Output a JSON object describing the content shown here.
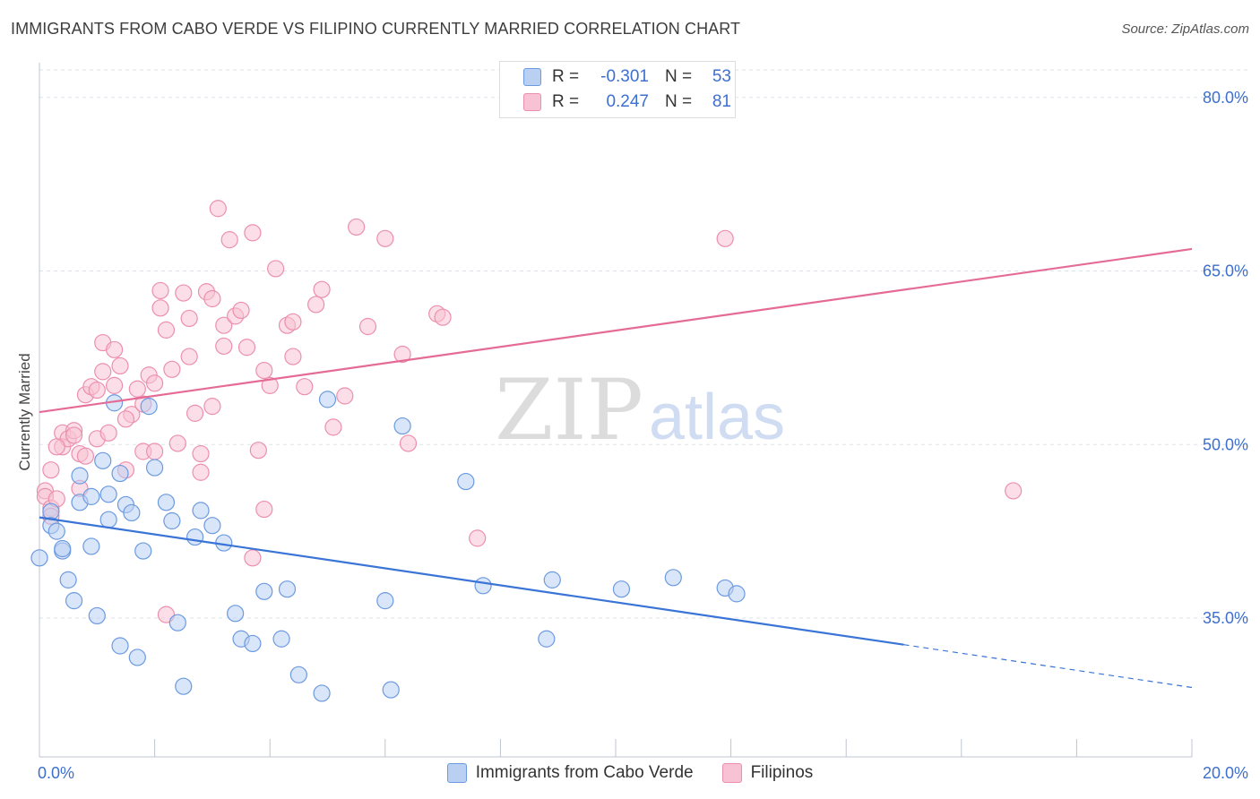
{
  "title": "IMMIGRANTS FROM CABO VERDE VS FILIPINO CURRENTLY MARRIED CORRELATION CHART",
  "source": "Source: ZipAtlas.com",
  "watermark": {
    "zip": "ZIP",
    "atlas": "atlas"
  },
  "legend_top": [
    {
      "r_label": "R =",
      "r_value": "-0.301",
      "n_label": "N =",
      "n_value": "53"
    },
    {
      "r_label": "R =",
      "r_value": "0.247",
      "n_label": "N =",
      "n_value": "81"
    }
  ],
  "colors": {
    "blue_fill": "#b9d0f2",
    "blue_stroke": "#6b9ae0",
    "blue_line": "#3a74d6",
    "pink_fill": "#f7c3d4",
    "pink_stroke": "#ec8fae",
    "pink_line": "#e56b97",
    "tick_text": "#3d6fcf",
    "grid": "#dde2ea"
  },
  "chart_data": {
    "type": "scatter",
    "title": "IMMIGRANTS FROM CABO VERDE VS FILIPINO CURRENTLY MARRIED CORRELATION CHART",
    "xlabel": "",
    "ylabel": "Currently Married",
    "xlim": [
      0,
      20
    ],
    "ylim": [
      23,
      83
    ],
    "x_tick_labels": [
      "0.0%",
      "20.0%"
    ],
    "y_ticks": [
      35,
      50,
      65,
      80
    ],
    "y_tick_labels": [
      "35.0%",
      "50.0%",
      "65.0%",
      "80.0%"
    ],
    "grid": true,
    "legend_position": "top-center",
    "series": [
      {
        "name": "Immigrants from Cabo Verde",
        "color": "#6b9ae0",
        "trend": {
          "x0": 0,
          "y0": 43.7,
          "x1": 15,
          "y1": 32.7,
          "dash_x1": 20,
          "dash_y1": 29.0
        },
        "points": [
          [
            0.0,
            40.2
          ],
          [
            0.2,
            44.2
          ],
          [
            0.2,
            43.0
          ],
          [
            0.3,
            42.5
          ],
          [
            0.4,
            40.8
          ],
          [
            0.4,
            41.0
          ],
          [
            0.5,
            38.3
          ],
          [
            0.6,
            36.5
          ],
          [
            0.7,
            47.3
          ],
          [
            0.7,
            45.0
          ],
          [
            0.9,
            45.5
          ],
          [
            0.9,
            41.2
          ],
          [
            1.0,
            35.2
          ],
          [
            1.1,
            48.6
          ],
          [
            1.2,
            45.7
          ],
          [
            1.2,
            43.5
          ],
          [
            1.4,
            47.5
          ],
          [
            1.4,
            32.6
          ],
          [
            1.5,
            44.8
          ],
          [
            1.6,
            44.1
          ],
          [
            1.7,
            31.6
          ],
          [
            1.8,
            40.8
          ],
          [
            2.0,
            48.0
          ],
          [
            2.2,
            45.0
          ],
          [
            2.3,
            43.4
          ],
          [
            2.4,
            34.6
          ],
          [
            2.5,
            29.1
          ],
          [
            2.7,
            42.0
          ],
          [
            2.8,
            44.3
          ],
          [
            3.0,
            43.0
          ],
          [
            3.2,
            41.5
          ],
          [
            3.4,
            35.4
          ],
          [
            3.5,
            33.2
          ],
          [
            3.7,
            32.8
          ],
          [
            3.9,
            37.3
          ],
          [
            4.2,
            33.2
          ],
          [
            4.3,
            37.5
          ],
          [
            4.5,
            30.1
          ],
          [
            4.9,
            28.5
          ],
          [
            5.0,
            53.9
          ],
          [
            6.0,
            36.5
          ],
          [
            6.1,
            28.8
          ],
          [
            6.3,
            51.6
          ],
          [
            7.4,
            46.8
          ],
          [
            7.7,
            37.8
          ],
          [
            8.8,
            33.2
          ],
          [
            8.9,
            38.3
          ],
          [
            10.1,
            37.5
          ],
          [
            11.0,
            38.5
          ],
          [
            11.9,
            37.6
          ],
          [
            12.1,
            37.1
          ],
          [
            1.3,
            53.6
          ],
          [
            1.9,
            53.3
          ]
        ]
      },
      {
        "name": "Filipinos",
        "color": "#ec8fae",
        "trend": {
          "x0": 0,
          "y0": 52.8,
          "x1": 20,
          "y1": 66.9
        },
        "points": [
          [
            0.1,
            46.0
          ],
          [
            0.1,
            45.5
          ],
          [
            0.2,
            44.5
          ],
          [
            0.2,
            43.8
          ],
          [
            0.2,
            47.8
          ],
          [
            0.3,
            45.3
          ],
          [
            0.4,
            51.0
          ],
          [
            0.4,
            49.8
          ],
          [
            0.5,
            50.5
          ],
          [
            0.6,
            51.2
          ],
          [
            0.7,
            46.2
          ],
          [
            0.7,
            49.2
          ],
          [
            0.8,
            49.0
          ],
          [
            0.8,
            54.3
          ],
          [
            0.9,
            55.0
          ],
          [
            1.0,
            50.5
          ],
          [
            1.1,
            56.3
          ],
          [
            1.1,
            58.8
          ],
          [
            1.2,
            51.0
          ],
          [
            1.3,
            55.1
          ],
          [
            1.3,
            58.2
          ],
          [
            1.4,
            56.8
          ],
          [
            1.5,
            47.8
          ],
          [
            1.6,
            52.6
          ],
          [
            1.7,
            54.8
          ],
          [
            1.8,
            49.4
          ],
          [
            1.8,
            53.5
          ],
          [
            1.9,
            56.0
          ],
          [
            2.0,
            49.4
          ],
          [
            2.0,
            55.3
          ],
          [
            2.1,
            61.8
          ],
          [
            2.1,
            63.3
          ],
          [
            2.2,
            59.9
          ],
          [
            2.3,
            56.5
          ],
          [
            2.4,
            50.1
          ],
          [
            2.5,
            63.1
          ],
          [
            2.6,
            60.9
          ],
          [
            2.6,
            57.6
          ],
          [
            2.7,
            52.7
          ],
          [
            2.8,
            49.2
          ],
          [
            2.8,
            47.6
          ],
          [
            2.9,
            63.2
          ],
          [
            3.0,
            62.6
          ],
          [
            3.0,
            53.3
          ],
          [
            3.1,
            70.4
          ],
          [
            3.2,
            58.5
          ],
          [
            3.2,
            60.3
          ],
          [
            3.3,
            67.7
          ],
          [
            3.4,
            61.1
          ],
          [
            3.5,
            61.6
          ],
          [
            3.6,
            58.4
          ],
          [
            3.7,
            68.3
          ],
          [
            3.7,
            40.2
          ],
          [
            3.8,
            49.5
          ],
          [
            3.9,
            56.4
          ],
          [
            3.9,
            44.4
          ],
          [
            4.0,
            55.1
          ],
          [
            4.1,
            65.2
          ],
          [
            4.3,
            60.3
          ],
          [
            4.4,
            57.6
          ],
          [
            4.4,
            60.6
          ],
          [
            4.6,
            55.0
          ],
          [
            4.8,
            62.1
          ],
          [
            4.9,
            63.4
          ],
          [
            5.1,
            51.5
          ],
          [
            5.3,
            54.2
          ],
          [
            5.5,
            68.8
          ],
          [
            5.7,
            60.2
          ],
          [
            6.0,
            67.8
          ],
          [
            6.3,
            57.8
          ],
          [
            6.4,
            50.1
          ],
          [
            6.9,
            61.3
          ],
          [
            7.0,
            61.0
          ],
          [
            7.6,
            41.9
          ],
          [
            11.9,
            67.8
          ],
          [
            16.9,
            46.0
          ],
          [
            0.3,
            49.8
          ],
          [
            1.5,
            52.2
          ],
          [
            2.2,
            35.3
          ],
          [
            0.6,
            50.8
          ],
          [
            1.0,
            54.7
          ]
        ]
      }
    ]
  },
  "legend_bottom": [
    {
      "label": "Immigrants from Cabo Verde"
    },
    {
      "label": "Filipinos"
    }
  ]
}
